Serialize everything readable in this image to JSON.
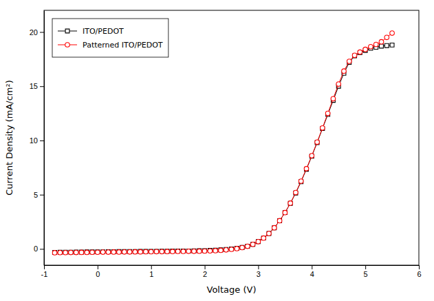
{
  "chart_data": {
    "type": "line",
    "xlabel": "Voltage (V)",
    "ylabel": "Current Density (mA/cm²)",
    "xlim": [
      -1.0,
      6.0
    ],
    "ylim": [
      -1.5,
      22
    ],
    "xticks": [
      -1,
      0,
      1,
      2,
      3,
      4,
      5,
      6
    ],
    "yticks": [
      0,
      5,
      10,
      15,
      20
    ],
    "legend": "upper left",
    "x": [
      -0.8,
      -0.7,
      -0.6,
      -0.5,
      -0.4,
      -0.3,
      -0.2,
      -0.1,
      0.0,
      0.1,
      0.2,
      0.3,
      0.4,
      0.5,
      0.6,
      0.7,
      0.8,
      0.9,
      1.0,
      1.1,
      1.2,
      1.3,
      1.4,
      1.5,
      1.6,
      1.7,
      1.8,
      1.9,
      2.0,
      2.1,
      2.2,
      2.3,
      2.4,
      2.5,
      2.6,
      2.7,
      2.8,
      2.9,
      3.0,
      3.1,
      3.2,
      3.3,
      3.4,
      3.5,
      3.6,
      3.7,
      3.8,
      3.9,
      4.0,
      4.1,
      4.2,
      4.3,
      4.4,
      4.5,
      4.6,
      4.7,
      4.8,
      4.9,
      5.0,
      5.1,
      5.2,
      5.3,
      5.4,
      5.5
    ],
    "series": [
      {
        "name": "ITO/PEDOT",
        "color": "black",
        "marker": "square",
        "values": [
          -0.32,
          -0.31,
          -0.3,
          -0.3,
          -0.29,
          -0.29,
          -0.28,
          -0.28,
          -0.27,
          -0.27,
          -0.26,
          -0.26,
          -0.25,
          -0.25,
          -0.24,
          -0.24,
          -0.23,
          -0.23,
          -0.22,
          -0.22,
          -0.21,
          -0.21,
          -0.2,
          -0.2,
          -0.19,
          -0.19,
          -0.18,
          -0.17,
          -0.16,
          -0.14,
          -0.12,
          -0.09,
          -0.05,
          0.0,
          0.06,
          0.14,
          0.25,
          0.42,
          0.68,
          1.0,
          1.42,
          1.95,
          2.6,
          3.35,
          4.2,
          5.15,
          6.2,
          7.35,
          8.55,
          9.8,
          11.1,
          12.4,
          13.7,
          15.0,
          16.2,
          17.2,
          17.8,
          18.1,
          18.3,
          18.5,
          18.6,
          18.7,
          18.75,
          18.8
        ]
      },
      {
        "name": "Patterned ITO/PEDOT",
        "color": "red",
        "marker": "circle",
        "values": [
          -0.35,
          -0.34,
          -0.34,
          -0.33,
          -0.33,
          -0.32,
          -0.32,
          -0.31,
          -0.31,
          -0.3,
          -0.3,
          -0.29,
          -0.29,
          -0.28,
          -0.28,
          -0.27,
          -0.27,
          -0.26,
          -0.26,
          -0.25,
          -0.25,
          -0.24,
          -0.24,
          -0.23,
          -0.23,
          -0.22,
          -0.22,
          -0.21,
          -0.2,
          -0.18,
          -0.16,
          -0.13,
          -0.09,
          -0.04,
          0.03,
          0.12,
          0.24,
          0.42,
          0.67,
          1.0,
          1.42,
          1.95,
          2.6,
          3.35,
          4.22,
          5.2,
          6.25,
          7.4,
          8.6,
          9.85,
          11.15,
          12.5,
          13.85,
          15.2,
          16.4,
          17.3,
          17.85,
          18.15,
          18.4,
          18.65,
          18.85,
          19.1,
          19.5,
          19.9
        ]
      }
    ]
  }
}
